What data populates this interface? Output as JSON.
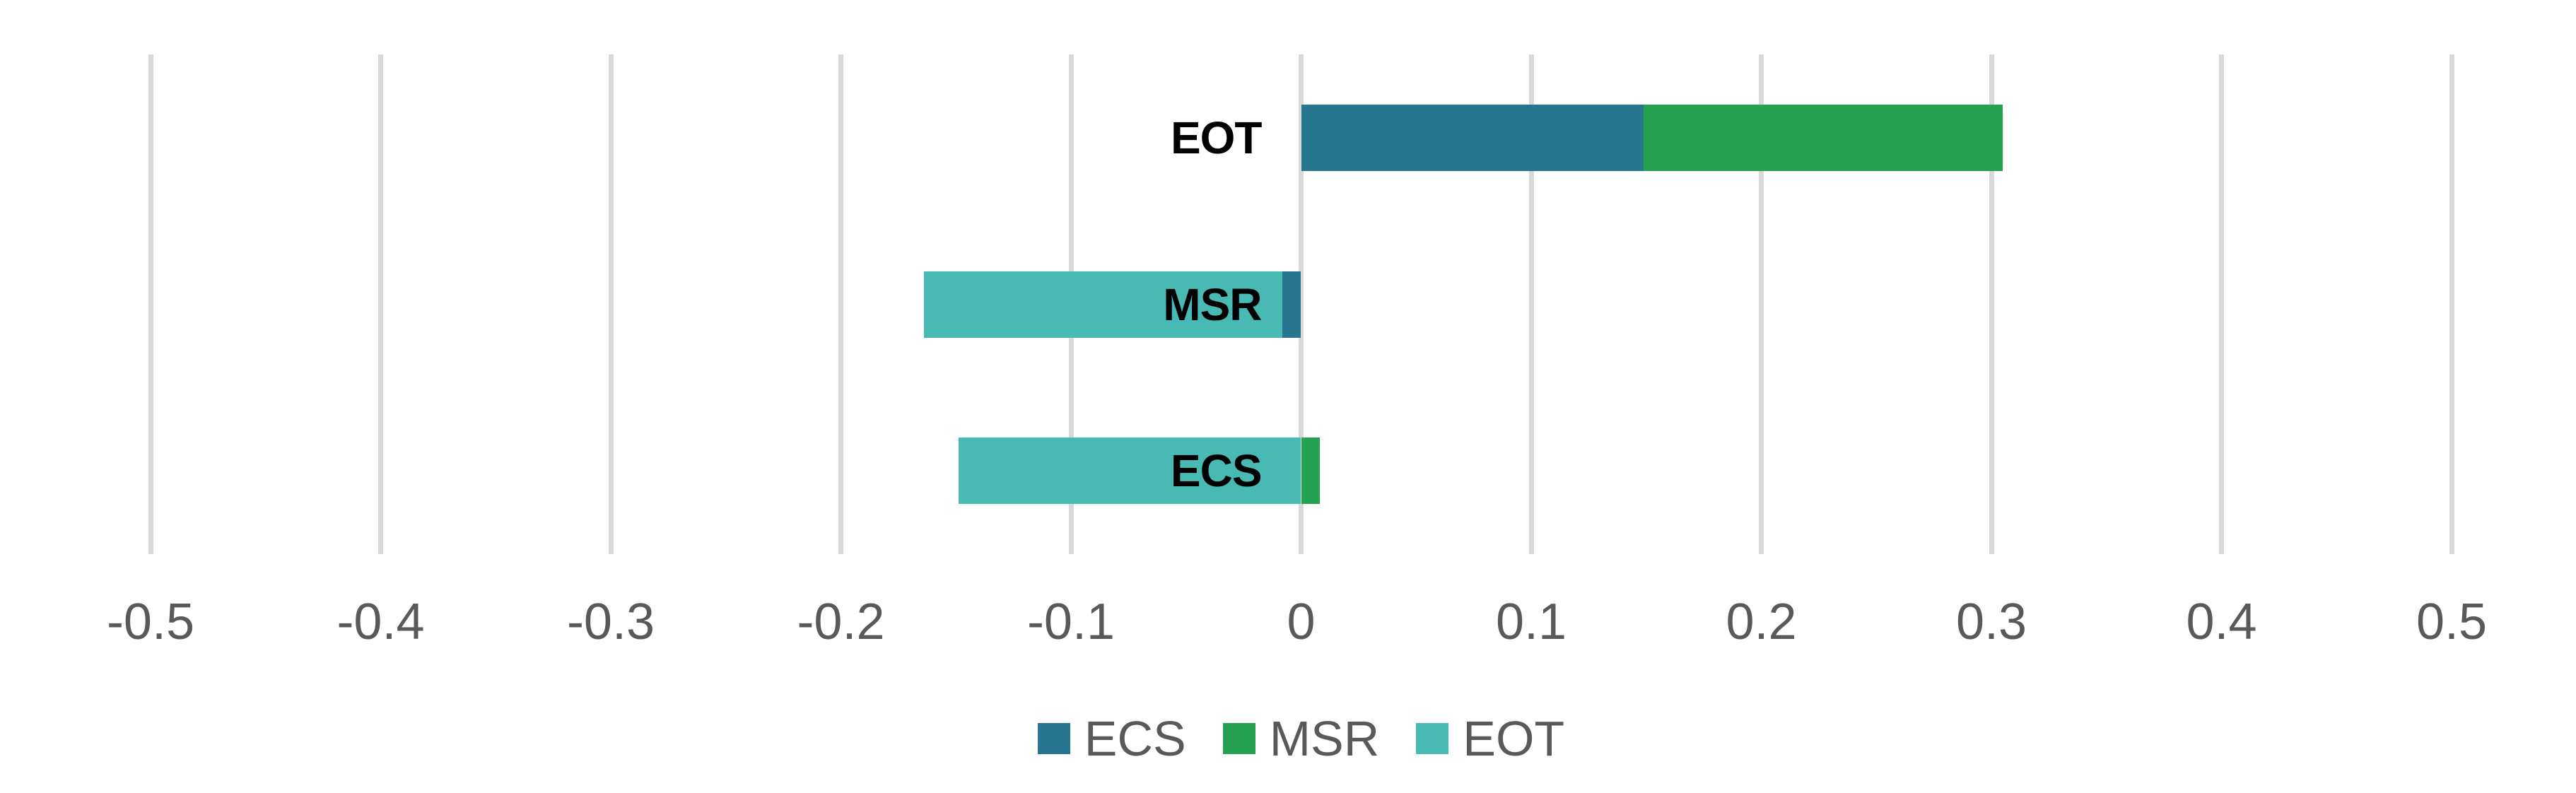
{
  "chart_data": {
    "type": "bar",
    "orientation": "horizontal",
    "stacked": true,
    "title": "",
    "categories": [
      "EOT",
      "MSR",
      "ECS"
    ],
    "series": [
      {
        "name": "ECS",
        "color": "#27768F",
        "values": [
          0.149,
          -0.008,
          0
        ]
      },
      {
        "name": "MSR",
        "color": "#26A152",
        "values": [
          0.156,
          0,
          0.008
        ]
      },
      {
        "name": "EOT",
        "color": "#49B9B4",
        "values": [
          0,
          -0.156,
          -0.149
        ]
      }
    ],
    "category_totals": [
      0.305,
      -0.164,
      -0.141
    ],
    "x_axis": {
      "min": -0.5,
      "max": 0.5,
      "tick_values": [
        -0.5,
        -0.4,
        -0.3,
        -0.2,
        -0.1,
        0,
        0.1,
        0.2,
        0.3,
        0.4,
        0.5
      ],
      "tick_labels": [
        "-0.5",
        "-0.4",
        "-0.3",
        "-0.2",
        "-0.1",
        "0",
        "0.1",
        "0.2",
        "0.3",
        "0.4",
        "0.5"
      ]
    },
    "grid": true,
    "legend": {
      "position": "bottom",
      "entries": [
        {
          "label": "ECS",
          "color": "#27768F"
        },
        {
          "label": "MSR",
          "color": "#26A152"
        },
        {
          "label": "EOT",
          "color": "#49B9B4"
        }
      ]
    },
    "colors": {
      "background": "#FFFFFF",
      "gridline": "#D9D9D9",
      "tick_text": "#595959",
      "legend_text": "#595959",
      "category_label_text": "#000000"
    }
  }
}
